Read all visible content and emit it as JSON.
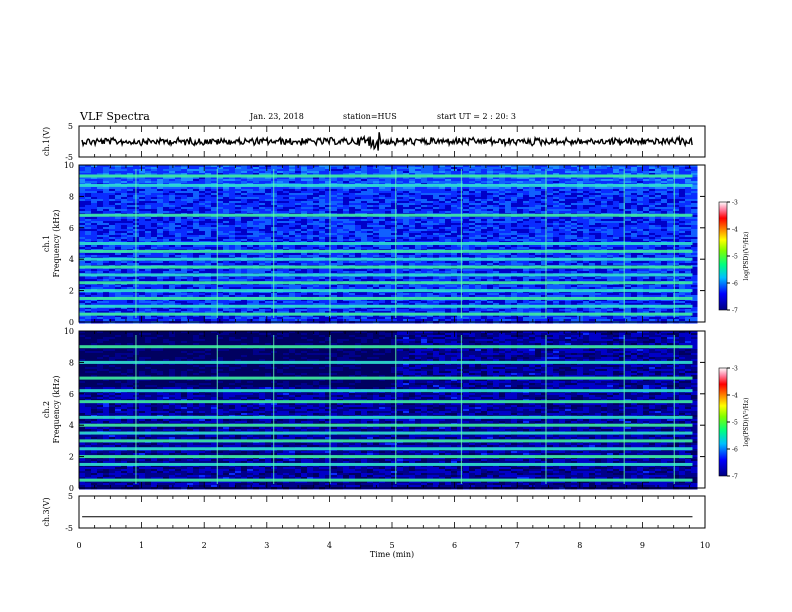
{
  "header": {
    "title": "VLF Spectra",
    "date": "Jan. 23, 2018",
    "station": "station=HUS",
    "start": "start UT =  2 : 20: 3"
  },
  "colors": {
    "colormap": [
      "#000080",
      "#0000ff",
      "#00c0ff",
      "#00ff80",
      "#80ff00",
      "#ffff00",
      "#ff8000",
      "#ff0000",
      "#ff80a0",
      "#ffffff"
    ]
  },
  "chart_data": [
    {
      "type": "line",
      "name": "ch1-waveform",
      "ylabel": "ch.1(V)",
      "ylim": [
        -5,
        5
      ],
      "yticks": [
        "5",
        "-5"
      ],
      "x_range_min": [
        0,
        10
      ],
      "approx_level": 0,
      "approx_amplitude": 0.4
    },
    {
      "type": "heatmap",
      "name": "ch1-spectrogram",
      "ylabel": "ch.1\nFrequency (kHz)",
      "ylim": [
        0,
        10
      ],
      "yticks": [
        "0",
        "2",
        "4",
        "6",
        "8",
        "10"
      ],
      "x_range_min": [
        0,
        9.8
      ],
      "bands_khz": [
        0.5,
        1.0,
        1.5,
        2.0,
        2.5,
        3.0,
        3.5,
        4.0,
        4.5,
        5.0,
        6.8,
        8.7,
        9.3
      ],
      "colorbar": {
        "label": "log(PSD)(V²/Hz)",
        "range": [
          -7,
          -3
        ],
        "ticks": [
          "-3",
          "-4",
          "-5",
          "-6",
          "-7"
        ]
      }
    },
    {
      "type": "heatmap",
      "name": "ch2-spectrogram",
      "ylabel": "ch.2\nFrequency (kHz)",
      "ylim": [
        0,
        10
      ],
      "yticks": [
        "0",
        "2",
        "4",
        "6",
        "8",
        "10"
      ],
      "x_range_min": [
        0,
        9.8
      ],
      "bands_khz": [
        0.5,
        1.5,
        2.0,
        2.5,
        3.0,
        3.5,
        4.0,
        4.5,
        5.5,
        6.2,
        7.0,
        8.0,
        9.0
      ],
      "colorbar": {
        "label": "log(PSD)(V²/Hz)",
        "range": [
          -7,
          -3
        ],
        "ticks": [
          "-3",
          "-4",
          "-5",
          "-6",
          "-7"
        ]
      }
    },
    {
      "type": "line",
      "name": "ch3-waveform",
      "ylabel": "ch.3(V)",
      "ylim": [
        -5,
        5
      ],
      "yticks": [
        "5",
        "-5"
      ],
      "x_range_min": [
        0,
        10
      ],
      "approx_level": -1.5
    }
  ],
  "xaxis": {
    "label": "Time (min)",
    "range": [
      0,
      10
    ],
    "ticks": [
      "0",
      "1",
      "2",
      "3",
      "4",
      "5",
      "6",
      "7",
      "8",
      "9",
      "10"
    ]
  }
}
